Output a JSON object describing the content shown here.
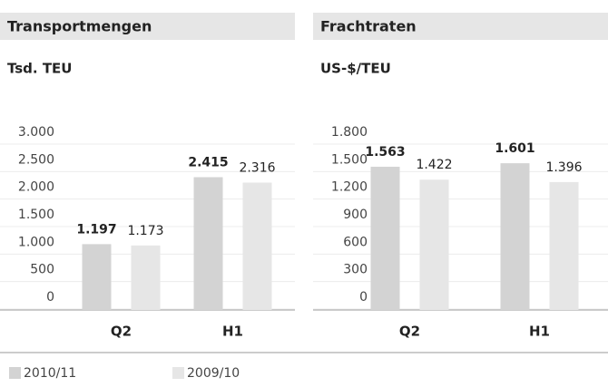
{
  "chart_data": [
    {
      "type": "bar",
      "title": "Transportmengen",
      "subtitle": "Tsd. TEU",
      "categories": [
        "Q2",
        "H1"
      ],
      "series": [
        {
          "name": "2010/11",
          "color": "#d3d3d3",
          "values": [
            1197,
            2415
          ],
          "value_labels": [
            "1.197",
            "2.415"
          ]
        },
        {
          "name": "2009/10",
          "color": "#e6e6e6",
          "values": [
            1173,
            2316
          ],
          "value_labels": [
            "1.173",
            "2.316"
          ]
        }
      ],
      "ylim": [
        0,
        3000
      ],
      "yticks": [
        0,
        500,
        {
          "value": 1000,
          "label": "1.000"
        },
        {
          "value": 1500,
          "label": "1.500"
        },
        {
          "value": 2000,
          "label": "2.000"
        },
        {
          "value": 2500,
          "label": "2.500"
        },
        {
          "value": 3000,
          "label": "3.000"
        }
      ],
      "grid": true
    },
    {
      "type": "bar",
      "title": "Frachtraten",
      "subtitle": "US-$/TEU",
      "categories": [
        "Q2",
        "H1"
      ],
      "series": [
        {
          "name": "2010/11",
          "color": "#d3d3d3",
          "values": [
            1563,
            1601
          ],
          "value_labels": [
            "1.563",
            "1.601"
          ]
        },
        {
          "name": "2009/10",
          "color": "#e6e6e6",
          "values": [
            1422,
            1396
          ],
          "value_labels": [
            "1.422",
            "1.396"
          ]
        }
      ],
      "ylim": [
        0,
        1800
      ],
      "yticks": [
        0,
        300,
        600,
        900,
        {
          "value": 1200,
          "label": "1.200"
        },
        {
          "value": 1500,
          "label": "1.500"
        },
        {
          "value": 1800,
          "label": "1.800"
        }
      ],
      "grid": true
    }
  ]
}
